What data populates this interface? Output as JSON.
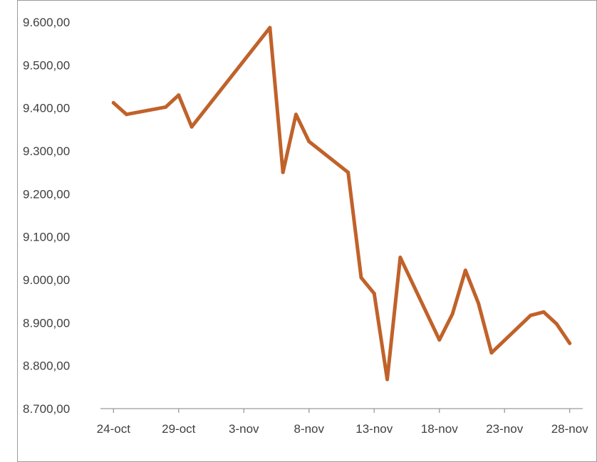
{
  "chart_data": {
    "type": "line",
    "title": "",
    "xlabel": "",
    "ylabel": "",
    "x_range": [
      "2023-10-23",
      "2023-11-29"
    ],
    "ylim": [
      8700,
      9600
    ],
    "y_ticks": [
      8700,
      8800,
      8900,
      9000,
      9100,
      9200,
      9300,
      9400,
      9500,
      9600
    ],
    "y_tick_labels": [
      "8.700,00",
      "8.800,00",
      "8.900,00",
      "9.000,00",
      "9.100,00",
      "9.200,00",
      "9.300,00",
      "9.400,00",
      "9.500,00",
      "9.600,00"
    ],
    "x_ticks": [
      "2023-10-24",
      "2023-10-29",
      "2023-11-03",
      "2023-11-08",
      "2023-11-13",
      "2023-11-18",
      "2023-11-23",
      "2023-11-28"
    ],
    "x_tick_labels": [
      "24-oct",
      "29-oct",
      "3-nov",
      "8-nov",
      "13-nov",
      "18-nov",
      "23-nov",
      "28-nov"
    ],
    "grid": false,
    "legend": "none",
    "series": [
      {
        "color": "#C0622A",
        "points": [
          {
            "x": "2023-10-24",
            "y": 9412
          },
          {
            "x": "2023-10-25",
            "y": 9385
          },
          {
            "x": "2023-10-28",
            "y": 9402
          },
          {
            "x": "2023-10-29",
            "y": 9430
          },
          {
            "x": "2023-10-30",
            "y": 9356
          },
          {
            "x": "2023-11-05",
            "y": 9587
          },
          {
            "x": "2023-11-06",
            "y": 9250
          },
          {
            "x": "2023-11-07",
            "y": 9385
          },
          {
            "x": "2023-11-08",
            "y": 9322
          },
          {
            "x": "2023-11-11",
            "y": 9250
          },
          {
            "x": "2023-11-12",
            "y": 9005
          },
          {
            "x": "2023-11-13",
            "y": 8968
          },
          {
            "x": "2023-11-14",
            "y": 8768
          },
          {
            "x": "2023-11-15",
            "y": 9052
          },
          {
            "x": "2023-11-18",
            "y": 8860
          },
          {
            "x": "2023-11-19",
            "y": 8920
          },
          {
            "x": "2023-11-20",
            "y": 9022
          },
          {
            "x": "2023-11-21",
            "y": 8945
          },
          {
            "x": "2023-11-22",
            "y": 8830
          },
          {
            "x": "2023-11-25",
            "y": 8917
          },
          {
            "x": "2023-11-26",
            "y": 8925
          },
          {
            "x": "2023-11-27",
            "y": 8897
          },
          {
            "x": "2023-11-28",
            "y": 8852
          }
        ]
      }
    ]
  }
}
